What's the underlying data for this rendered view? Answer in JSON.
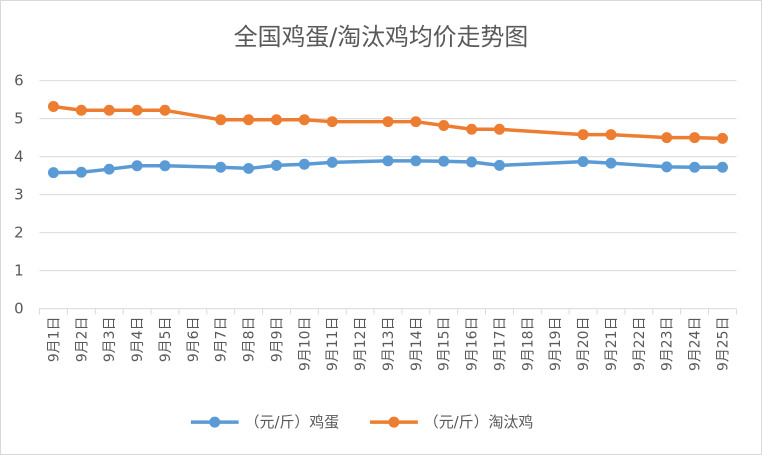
{
  "chart_data": {
    "type": "line",
    "title": "全国鸡蛋/淘汰鸡均价走势图",
    "xlabel": "",
    "ylabel": "",
    "ylim": [
      0,
      6
    ],
    "yticks": [
      "0",
      "1",
      "2",
      "3",
      "4",
      "5",
      "6"
    ],
    "grid": true,
    "legend_position": "bottom",
    "categories": [
      "9月1日",
      "9月2日",
      "9月3日",
      "9月4日",
      "9月5日",
      "9月6日",
      "9月7日",
      "9月8日",
      "9月9日",
      "9月10日",
      "9月11日",
      "9月12日",
      "9月13日",
      "9月14日",
      "9月15日",
      "9月16日",
      "9月17日",
      "9月18日",
      "9月19日",
      "9月20日",
      "9月21日",
      "9月22日",
      "9月23日",
      "9月24日",
      "9月25日"
    ],
    "series": [
      {
        "name": "（元/斤）鸡蛋",
        "color": "#5b9bd5",
        "values": [
          3.58,
          3.59,
          3.67,
          3.76,
          3.76,
          null,
          3.72,
          3.69,
          3.77,
          3.8,
          3.85,
          null,
          3.89,
          3.89,
          3.88,
          3.86,
          3.77,
          null,
          null,
          3.87,
          3.83,
          null,
          3.73,
          3.72,
          3.72
        ]
      },
      {
        "name": "（元/斤）淘汰鸡",
        "color": "#ed7d31",
        "values": [
          5.32,
          5.22,
          5.22,
          5.22,
          5.22,
          null,
          4.97,
          4.97,
          4.97,
          4.97,
          4.92,
          null,
          4.92,
          4.92,
          4.82,
          4.72,
          4.72,
          null,
          null,
          4.58,
          4.58,
          null,
          4.5,
          4.5,
          4.48
        ]
      }
    ]
  }
}
